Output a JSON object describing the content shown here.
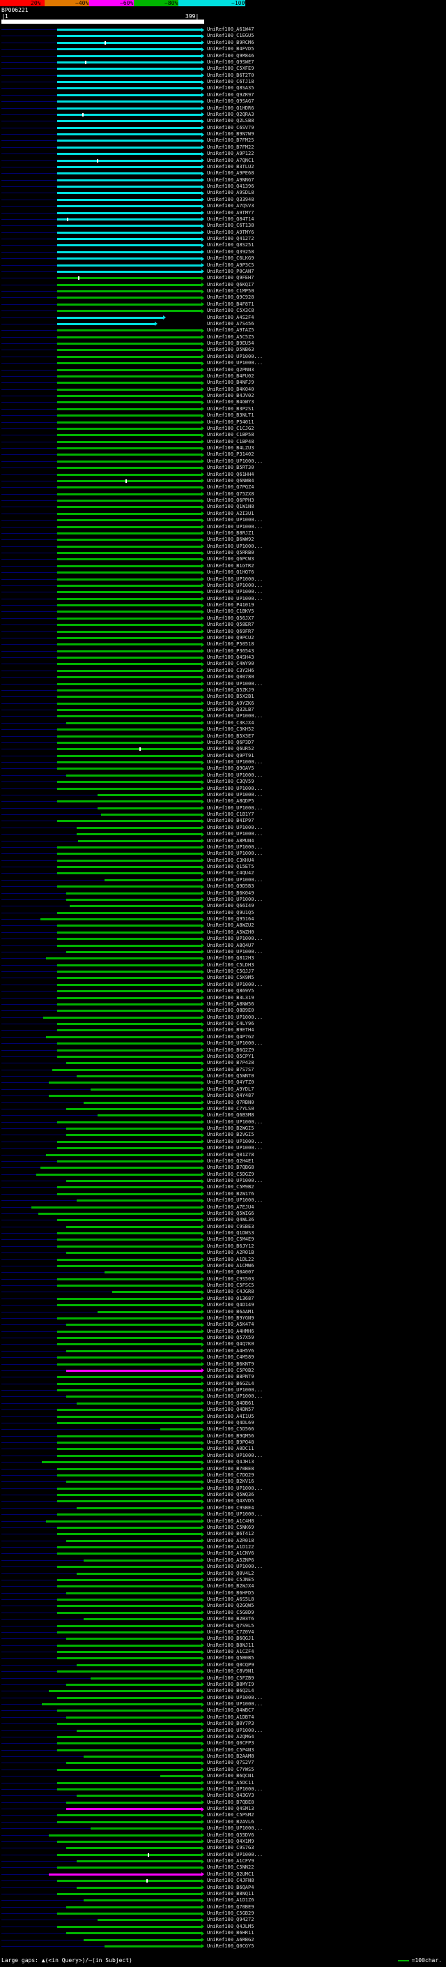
{
  "header": {
    "query_id": "BP006221",
    "coord_left": "|1",
    "coord_right": "399|"
  },
  "scale": {
    "bins": [
      {
        "label": "20%",
        "color": "#FF0000"
      },
      {
        "label": "~40%",
        "color": "#E07800"
      },
      {
        "label": "~60%",
        "color": "#FF00FF"
      },
      {
        "label": "~80%",
        "color": "#00B400"
      },
      {
        "label": "~100%",
        "color": "#00E0E0"
      }
    ]
  },
  "footer": {
    "left": "Large gaps: ▲(<in Query>)/—(in Subject)",
    "legend_text": "=100char.",
    "legend_dash_color": "#00B400"
  },
  "colors": {
    "background": "#000000",
    "query_bar": "#FFFFFF",
    "leader_line": "#000070",
    "label_text": "#D8D8D8",
    "header_text": "#FFFFFF"
  },
  "chart_data": {
    "type": "bar",
    "xlabel": "query position",
    "x_axis": {
      "min": 1,
      "max": 399
    },
    "bin_colors": {
      "100": "#00E0E0",
      "80": "#00B400",
      "60": "#FF00FF"
    },
    "label_prefix": "UniRef100_",
    "defaults": {
      "qs": 110,
      "qe": 399,
      "bin": "80"
    },
    "hits": [
      {
        "id": "A61W47",
        "bin": "100"
      },
      {
        "id": "C1EGU5",
        "bin": "100"
      },
      {
        "id": "B9RCM6",
        "bin": "100",
        "mk": [
          203
        ]
      },
      {
        "id": "B4FVD5",
        "bin": "100"
      },
      {
        "id": "Q9M846",
        "bin": "100"
      },
      {
        "id": "Q9SWE7",
        "bin": "100",
        "mk": [
          165
        ]
      },
      {
        "id": "C5XFE9",
        "bin": "100"
      },
      {
        "id": "B6T2T0",
        "bin": "100"
      },
      {
        "id": "C6TJ18",
        "bin": "100"
      },
      {
        "id": "Q8SA35",
        "bin": "100"
      },
      {
        "id": "Q9ZR97",
        "bin": "100"
      },
      {
        "id": "Q9SAG7",
        "bin": "100"
      },
      {
        "id": "Q1HDR6",
        "bin": "100"
      },
      {
        "id": "Q2QRA3",
        "bin": "100",
        "mk": [
          159
        ]
      },
      {
        "id": "Q2LSB8",
        "bin": "100"
      },
      {
        "id": "C6SV79",
        "bin": "100"
      },
      {
        "id": "B9N7W9",
        "bin": "100"
      },
      {
        "id": "B7FM25",
        "bin": "100"
      },
      {
        "id": "B7FM22",
        "bin": "100"
      },
      {
        "id": "A9P122",
        "bin": "100"
      },
      {
        "id": "A7QNC1",
        "bin": "100",
        "mk": [
          189
        ]
      },
      {
        "id": "B3TLU2",
        "bin": "100"
      },
      {
        "id": "A9PE68",
        "bin": "100"
      },
      {
        "id": "A9NNG7",
        "bin": "100"
      },
      {
        "id": "Q41396",
        "bin": "100"
      },
      {
        "id": "A9SDL8",
        "bin": "100"
      },
      {
        "id": "Q33948",
        "bin": "100"
      },
      {
        "id": "A7QSV3",
        "bin": "100"
      },
      {
        "id": "A9TMY7",
        "bin": "100"
      },
      {
        "id": "Q84T14",
        "bin": "100",
        "mk": [
          129
        ]
      },
      {
        "id": "C6T138",
        "bin": "100"
      },
      {
        "id": "A9TMY6",
        "bin": "100"
      },
      {
        "id": "Q41272",
        "bin": "100"
      },
      {
        "id": "Q8S251",
        "bin": "100"
      },
      {
        "id": "Q39258",
        "bin": "100"
      },
      {
        "id": "C6LKG9",
        "bin": "100"
      },
      {
        "id": "A9P3C5",
        "bin": "100"
      },
      {
        "id": "P0CAN7",
        "bin": "100"
      },
      {
        "id": "Q9FEH7",
        "mk": [
          151
        ]
      },
      {
        "id": "Q6KQI7"
      },
      {
        "id": "C1MP50"
      },
      {
        "id": "Q9C928"
      },
      {
        "id": "B4F871"
      },
      {
        "id": "C5X3C8"
      },
      {
        "id": "A4S2F4",
        "bin": "100",
        "qe": 324
      },
      {
        "id": "A7S456",
        "bin": "100",
        "qe": 307
      },
      {
        "id": "A9TAZ5"
      },
      {
        "id": "A5C5Z5"
      },
      {
        "id": "B9EU54"
      },
      {
        "id": "D5NB63"
      },
      {
        "id": "UP1000..."
      },
      {
        "id": "UP1000..."
      },
      {
        "id": "Q2PNN3"
      },
      {
        "id": "B4FU02"
      },
      {
        "id": "B4NFJ9"
      },
      {
        "id": "B4K040"
      },
      {
        "id": "B4JV02"
      },
      {
        "id": "B4GWY3"
      },
      {
        "id": "B3P2S1"
      },
      {
        "id": "B3NLT1"
      },
      {
        "id": "P54011"
      },
      {
        "id": "C1CJG2"
      },
      {
        "id": "C1BP58"
      },
      {
        "id": "C1BP48"
      },
      {
        "id": "B4LZU3"
      },
      {
        "id": "P31402"
      },
      {
        "id": "UP1000..."
      },
      {
        "id": "B5RT30"
      },
      {
        "id": "Q61HH4"
      },
      {
        "id": "Q6NWB4",
        "mk": [
          244
        ]
      },
      {
        "id": "Q7PQZ4"
      },
      {
        "id": "Q75ZX8"
      },
      {
        "id": "Q6PPH3"
      },
      {
        "id": "Q1W1N8"
      },
      {
        "id": "A2I3U1"
      },
      {
        "id": "UP1000..."
      },
      {
        "id": "UP1000..."
      },
      {
        "id": "B8RJZ1"
      },
      {
        "id": "B6WW92"
      },
      {
        "id": "UP1000..."
      },
      {
        "id": "Q5RRB0"
      },
      {
        "id": "Q6PCW3"
      },
      {
        "id": "B1GTR2"
      },
      {
        "id": "Q1HQ76"
      },
      {
        "id": "UP1000..."
      },
      {
        "id": "UP1000..."
      },
      {
        "id": "UP1000..."
      },
      {
        "id": "UP1000..."
      },
      {
        "id": "P41019"
      },
      {
        "id": "C1BKV5"
      },
      {
        "id": "Q56JX7"
      },
      {
        "id": "Q58ER7"
      },
      {
        "id": "Q69FR7"
      },
      {
        "id": "Q9PCU2"
      },
      {
        "id": "P50518"
      },
      {
        "id": "P36543"
      },
      {
        "id": "Q4SH43"
      },
      {
        "id": "C4WY90"
      },
      {
        "id": "C3Y2H6"
      },
      {
        "id": "Q00780"
      },
      {
        "id": "UP1000..."
      },
      {
        "id": "Q5ZKJ9"
      },
      {
        "id": "B5X2B1"
      },
      {
        "id": "A9YZK6"
      },
      {
        "id": "Q32LB7"
      },
      {
        "id": "UP1000..."
      },
      {
        "id": "C3KJX4",
        "qs": 128
      },
      {
        "id": "C3KH52"
      },
      {
        "id": "B5X3E7"
      },
      {
        "id": "Q6P3D7"
      },
      {
        "id": "Q6UR52",
        "mk": [
          272
        ]
      },
      {
        "id": "Q9PT91"
      },
      {
        "id": "UP1000..."
      },
      {
        "id": "Q9GAV5"
      },
      {
        "id": "UP1000...",
        "qs": 128
      },
      {
        "id": "C3QV59"
      },
      {
        "id": "UP1000..."
      },
      {
        "id": "UP1000...",
        "qs": 190
      },
      {
        "id": "A8QDP5"
      },
      {
        "id": "UP1000...",
        "qs": 190
      },
      {
        "id": "C1B1Y7",
        "qs": 197
      },
      {
        "id": "B4IP97"
      },
      {
        "id": "UP1000...",
        "qs": 149
      },
      {
        "id": "UP1000...",
        "qs": 149
      },
      {
        "id": "A8MUN4",
        "qs": 151
      },
      {
        "id": "UP1000..."
      },
      {
        "id": "UP1000..."
      },
      {
        "id": "C3KHU4"
      },
      {
        "id": "Q15ET5"
      },
      {
        "id": "C4QU42"
      },
      {
        "id": "UP1000...",
        "qs": 204
      },
      {
        "id": "Q9D5B3"
      },
      {
        "id": "B6K049",
        "qs": 128
      },
      {
        "id": "UP1000...",
        "qs": 128
      },
      {
        "id": "Q66I49",
        "qs": 135
      },
      {
        "id": "Q9U1Q5"
      },
      {
        "id": "Q95164",
        "qs": 77
      },
      {
        "id": "A8WZU2"
      },
      {
        "id": "A5WZH0"
      },
      {
        "id": "UP1000..."
      },
      {
        "id": "A8Q4U7"
      },
      {
        "id": "UP1000...",
        "qs": 128
      },
      {
        "id": "Q812H3",
        "qs": 88
      },
      {
        "id": "C5LDH3"
      },
      {
        "id": "C5QJJ7"
      },
      {
        "id": "C5K9M5"
      },
      {
        "id": "UP1000..."
      },
      {
        "id": "Q869V5"
      },
      {
        "id": "B3L319"
      },
      {
        "id": "A8NW56"
      },
      {
        "id": "Q8B9E0"
      },
      {
        "id": "UP1000...",
        "qs": 83
      },
      {
        "id": "C4LY96"
      },
      {
        "id": "B9ETH4"
      },
      {
        "id": "Q4P7G2",
        "qs": 88
      },
      {
        "id": "UP1000..."
      },
      {
        "id": "B6Q2Z9"
      },
      {
        "id": "Q5CPY1"
      },
      {
        "id": "B7P428",
        "qs": 128
      },
      {
        "id": "B7S7S7",
        "qs": 101
      },
      {
        "id": "Q5WNT0",
        "qs": 149
      },
      {
        "id": "Q4YTZ0",
        "qs": 94
      },
      {
        "id": "A9YDL7",
        "qs": 176
      },
      {
        "id": "Q4Y487",
        "qs": 94
      },
      {
        "id": "Q7RBN0",
        "qs": 163
      },
      {
        "id": "C7YLS0",
        "qs": 128
      },
      {
        "id": "Q6B3M8",
        "qs": 190
      },
      {
        "id": "UP1000..."
      },
      {
        "id": "B2WGI5",
        "qs": 128
      },
      {
        "id": "B2VGI5",
        "qs": 128
      },
      {
        "id": "UP1000..."
      },
      {
        "id": "UP1000..."
      },
      {
        "id": "Q01Z78",
        "qs": 88
      },
      {
        "id": "Q2H4E1"
      },
      {
        "id": "B7QBG8",
        "qs": 77
      },
      {
        "id": "C5DGZ9",
        "qs": 69
      },
      {
        "id": "UP1000...",
        "qs": 128
      },
      {
        "id": "C5M9B2"
      },
      {
        "id": "B2W176"
      },
      {
        "id": "UP1000...",
        "qs": 149
      },
      {
        "id": "A7EJU4",
        "qs": 60
      },
      {
        "id": "Q5WIG6",
        "qs": 74
      },
      {
        "id": "Q4WL36"
      },
      {
        "id": "C9SBE3",
        "qs": 128
      },
      {
        "id": "Q1DWS3"
      },
      {
        "id": "C5M4E9"
      },
      {
        "id": "B6JY12"
      },
      {
        "id": "A2R01B",
        "qs": 128
      },
      {
        "id": "A1DL22"
      },
      {
        "id": "A1CMW6"
      },
      {
        "id": "Q0A007",
        "qs": 204
      },
      {
        "id": "C9S503"
      },
      {
        "id": "C5FSC5"
      },
      {
        "id": "C4JGR8",
        "qs": 218
      },
      {
        "id": "O13687"
      },
      {
        "id": "Q4D149"
      },
      {
        "id": "B6AAM1",
        "qs": 190
      },
      {
        "id": "B9YGN9"
      },
      {
        "id": "A5K474",
        "qs": 128
      },
      {
        "id": "A4HMH6"
      },
      {
        "id": "Q57X59"
      },
      {
        "id": "Q4Q7K0"
      },
      {
        "id": "A4H5V6",
        "qs": 128
      },
      {
        "id": "C4M589"
      },
      {
        "id": "B6KNT9"
      },
      {
        "id": "C5P0B2",
        "bin": "60",
        "qs": 128
      },
      {
        "id": "B8PNT9"
      },
      {
        "id": "B6GZL4"
      },
      {
        "id": "UP1000..."
      },
      {
        "id": "UP1000...",
        "qs": 128
      },
      {
        "id": "Q4DB61",
        "qs": 149
      },
      {
        "id": "Q4DN57"
      },
      {
        "id": "A4I1U5"
      },
      {
        "id": "Q4DL69"
      },
      {
        "id": "C5D566",
        "qs": 313
      },
      {
        "id": "B9QM56"
      },
      {
        "id": "B9PQ48"
      },
      {
        "id": "A0DC11"
      },
      {
        "id": "UP1000..."
      },
      {
        "id": "Q4JH13",
        "qs": 80
      },
      {
        "id": "B70BE8"
      },
      {
        "id": "C7DQ29"
      },
      {
        "id": "B2KV16",
        "qs": 128
      },
      {
        "id": "UP1000..."
      },
      {
        "id": "Q5WQ36"
      },
      {
        "id": "Q4XVD5"
      },
      {
        "id": "C9SBE4",
        "qs": 149
      },
      {
        "id": "UP1000..."
      },
      {
        "id": "A1C4H8",
        "qs": 88
      },
      {
        "id": "C5NK69"
      },
      {
        "id": "B6T412"
      },
      {
        "id": "A2R018",
        "qs": 128
      },
      {
        "id": "A1D122"
      },
      {
        "id": "A1CNV6"
      },
      {
        "id": "A5ZNP6",
        "qs": 163
      },
      {
        "id": "UP1000..."
      },
      {
        "id": "Q0V4L2",
        "qs": 149
      },
      {
        "id": "C5JNE5"
      },
      {
        "id": "B2WJX4"
      },
      {
        "id": "B6HFD5",
        "qs": 128
      },
      {
        "id": "A6S5L8"
      },
      {
        "id": "Q2GQW5"
      },
      {
        "id": "C5G8D9"
      },
      {
        "id": "B2B3T6",
        "qs": 163
      },
      {
        "id": "Q7S9L5"
      },
      {
        "id": "C7Z0V4"
      },
      {
        "id": "B6QGJ1",
        "qs": 128
      },
      {
        "id": "B8NJ11"
      },
      {
        "id": "A1CZF4"
      },
      {
        "id": "Q5B0B5"
      },
      {
        "id": "Q0CQP9",
        "qs": 149
      },
      {
        "id": "C8V9N1"
      },
      {
        "id": "C5FZB9",
        "qs": 176
      },
      {
        "id": "B8MYI9",
        "qs": 128
      },
      {
        "id": "B6Q2L4",
        "qs": 94
      },
      {
        "id": "UP1000..."
      },
      {
        "id": "UP1000...",
        "qs": 80
      },
      {
        "id": "Q4WBC7"
      },
      {
        "id": "A1DB74",
        "qs": 128
      },
      {
        "id": "B0Y7P3"
      },
      {
        "id": "UP1000...",
        "qs": 149
      },
      {
        "id": "A2QMG4"
      },
      {
        "id": "Q0CFP3"
      },
      {
        "id": "C5P4N3"
      },
      {
        "id": "B2AAM8",
        "qs": 163
      },
      {
        "id": "Q7S2V7",
        "qs": 128
      },
      {
        "id": "C7YWS5"
      },
      {
        "id": "B6QCN1",
        "qs": 313
      },
      {
        "id": "A5DC11"
      },
      {
        "id": "UP1000..."
      },
      {
        "id": "Q43GV3",
        "qs": 149
      },
      {
        "id": "B7QBE8",
        "qs": 128
      },
      {
        "id": "Q4SM13",
        "bin": "60",
        "qs": 128
      },
      {
        "id": "C5PSM2"
      },
      {
        "id": "B2AVL6"
      },
      {
        "id": "UP1000...",
        "qs": 176
      },
      {
        "id": "Q55DV6",
        "qs": 94
      },
      {
        "id": "Q4X1M9"
      },
      {
        "id": "C9S7G3",
        "qs": 128
      },
      {
        "id": "UP1000...",
        "mk": [
          288
        ]
      },
      {
        "id": "A1CFV9",
        "qs": 149
      },
      {
        "id": "C5NN22"
      },
      {
        "id": "Q2UMC1",
        "bin": "60",
        "qs": 94
      },
      {
        "id": "C4JFN8",
        "mk": [
          285
        ]
      },
      {
        "id": "B6QAP4",
        "qs": 149
      },
      {
        "id": "B8NQ11"
      },
      {
        "id": "A1D1Z6",
        "qs": 163
      },
      {
        "id": "Q70BE9",
        "qs": 128
      },
      {
        "id": "C5GB29"
      },
      {
        "id": "Q94272",
        "qs": 190
      },
      {
        "id": "Q4JLM5"
      },
      {
        "id": "B6HR11",
        "qs": 128
      },
      {
        "id": "A6RBG2",
        "qs": 163
      },
      {
        "id": "Q0CGY5",
        "qs": 204
      }
    ]
  }
}
